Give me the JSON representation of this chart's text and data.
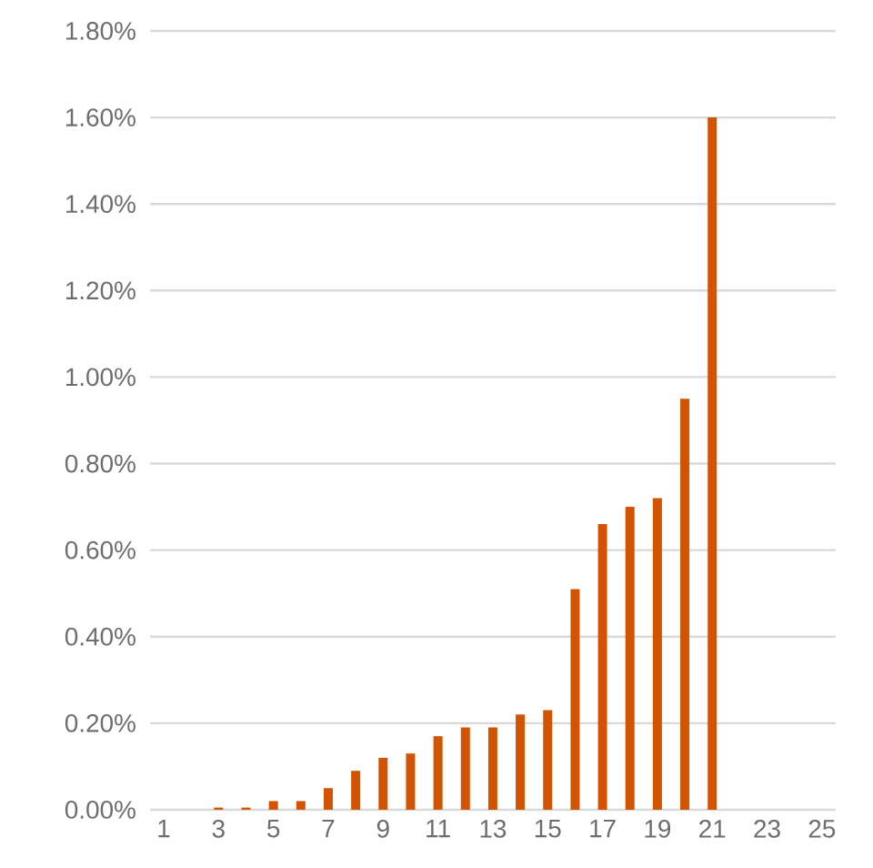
{
  "chart_data": {
    "type": "bar",
    "categories": [
      "1",
      null,
      "3",
      null,
      "5",
      null,
      "7",
      null,
      "9",
      null,
      "11",
      null,
      "13",
      null,
      "15",
      null,
      "17",
      null,
      "19",
      null,
      "21",
      null,
      "23",
      null,
      "25"
    ],
    "values": [
      null,
      null,
      0.005,
      0.005,
      0.02,
      0.02,
      0.05,
      0.09,
      0.12,
      0.13,
      0.17,
      0.19,
      0.19,
      0.22,
      0.23,
      0.51,
      0.66,
      0.7,
      0.72,
      0.95,
      1.6,
      null,
      null,
      null,
      null
    ],
    "color": "#d35400",
    "ylim": [
      0,
      1.8
    ],
    "yticks": [
      {
        "value": 0,
        "label": "0.00%"
      },
      {
        "value": 0.2,
        "label": "0.20%"
      },
      {
        "value": 0.4,
        "label": "0.40%"
      },
      {
        "value": 0.6,
        "label": "0.60%"
      },
      {
        "value": 0.8,
        "label": "0.80%"
      },
      {
        "value": 1.0,
        "label": "1.00%"
      },
      {
        "value": 1.2,
        "label": "1.20%"
      },
      {
        "value": 1.4,
        "label": "1.40%"
      },
      {
        "value": 1.6,
        "label": "1.60%"
      },
      {
        "value": 1.8,
        "label": "1.80%"
      }
    ],
    "grid": "y"
  }
}
